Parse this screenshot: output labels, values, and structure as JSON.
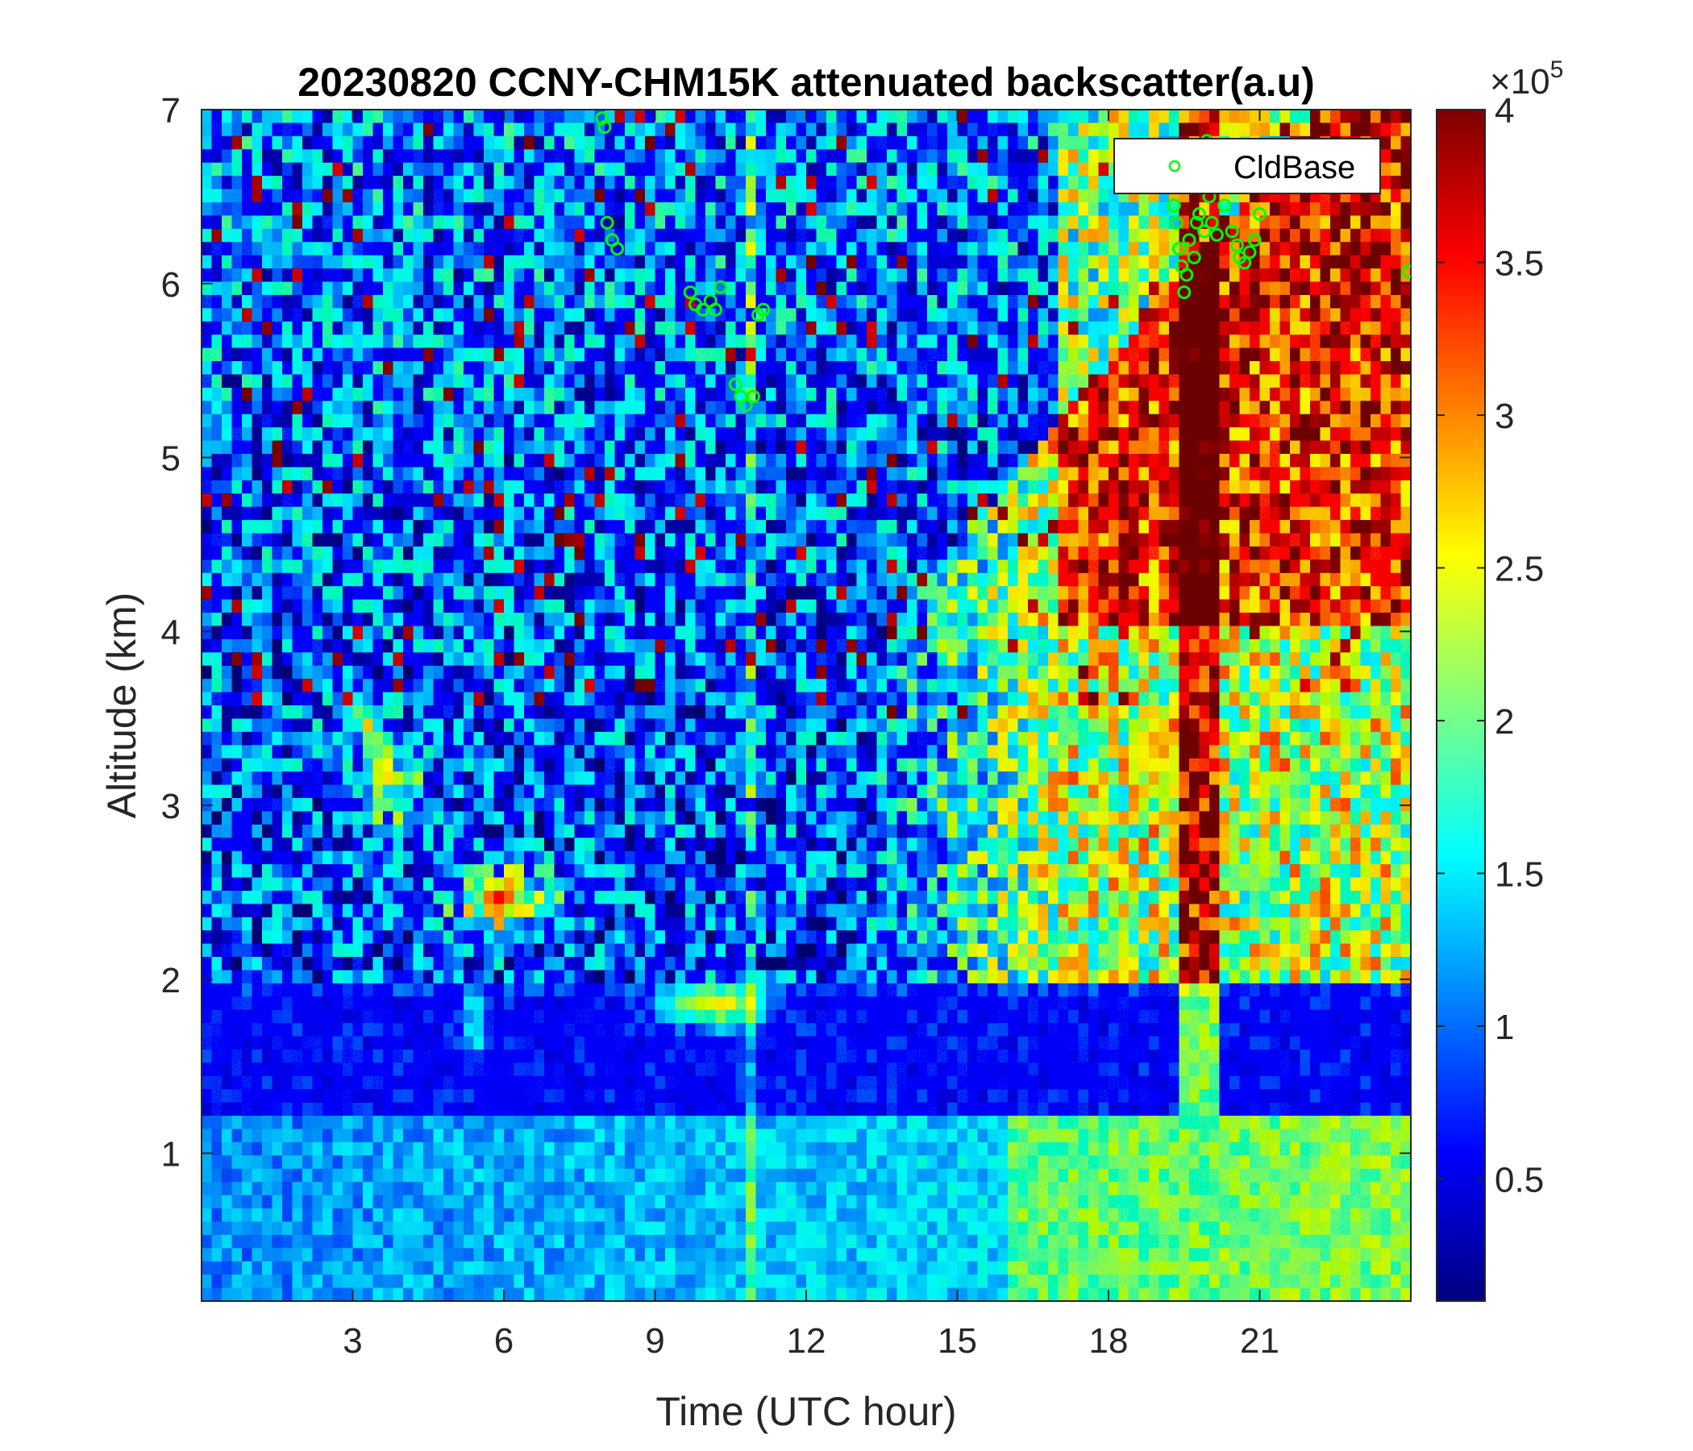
{
  "chart_data": {
    "type": "heatmap",
    "title": "20230820 CCNY-CHM15K attenuated backscatter(a.u)",
    "xlabel": "Time (UTC hour)",
    "ylabel": "Altitude (km)",
    "xlim": [
      0,
      24
    ],
    "ylim": [
      0.15,
      7
    ],
    "x_ticks": [
      3,
      6,
      9,
      12,
      15,
      18,
      21
    ],
    "y_ticks": [
      1,
      2,
      3,
      4,
      5,
      6,
      7
    ],
    "colorbar": {
      "colormap": "jet",
      "range": [
        10000,
        400000
      ],
      "ticks": [
        0.5,
        1,
        1.5,
        2,
        2.5,
        3,
        3.5,
        4
      ],
      "exponent_label": "×10",
      "exponent": "5"
    },
    "legend": {
      "location": "top-right",
      "entries": [
        "CldBase"
      ]
    },
    "colors": {
      "cloud_base_marker": "#00ff00"
    },
    "cloud_base_points": [
      {
        "x": 7.95,
        "y": 6.95
      },
      {
        "x": 8.0,
        "y": 6.9
      },
      {
        "x": 8.05,
        "y": 6.35
      },
      {
        "x": 8.15,
        "y": 6.25
      },
      {
        "x": 8.25,
        "y": 6.2
      },
      {
        "x": 9.7,
        "y": 5.95
      },
      {
        "x": 9.8,
        "y": 5.88
      },
      {
        "x": 9.95,
        "y": 5.85
      },
      {
        "x": 10.1,
        "y": 5.9
      },
      {
        "x": 10.2,
        "y": 5.85
      },
      {
        "x": 10.3,
        "y": 5.98
      },
      {
        "x": 10.6,
        "y": 5.42
      },
      {
        "x": 10.7,
        "y": 5.35
      },
      {
        "x": 10.8,
        "y": 5.3
      },
      {
        "x": 10.95,
        "y": 5.35
      },
      {
        "x": 11.05,
        "y": 5.82
      },
      {
        "x": 11.15,
        "y": 5.85
      },
      {
        "x": 19.3,
        "y": 6.45
      },
      {
        "x": 19.35,
        "y": 6.35
      },
      {
        "x": 19.4,
        "y": 6.2
      },
      {
        "x": 19.45,
        "y": 6.1
      },
      {
        "x": 19.5,
        "y": 5.95
      },
      {
        "x": 19.55,
        "y": 6.05
      },
      {
        "x": 19.6,
        "y": 6.25
      },
      {
        "x": 19.7,
        "y": 6.15
      },
      {
        "x": 19.75,
        "y": 6.35
      },
      {
        "x": 19.8,
        "y": 6.4
      },
      {
        "x": 19.9,
        "y": 6.3
      },
      {
        "x": 19.95,
        "y": 6.82
      },
      {
        "x": 20.0,
        "y": 6.5
      },
      {
        "x": 20.05,
        "y": 6.35
      },
      {
        "x": 20.15,
        "y": 6.28
      },
      {
        "x": 20.3,
        "y": 6.45
      },
      {
        "x": 20.45,
        "y": 6.3
      },
      {
        "x": 20.55,
        "y": 6.22
      },
      {
        "x": 20.6,
        "y": 6.15
      },
      {
        "x": 20.7,
        "y": 6.12
      },
      {
        "x": 20.8,
        "y": 6.18
      },
      {
        "x": 20.9,
        "y": 6.25
      },
      {
        "x": 21.0,
        "y": 6.4
      },
      {
        "x": 23.95,
        "y": 6.07
      }
    ]
  }
}
